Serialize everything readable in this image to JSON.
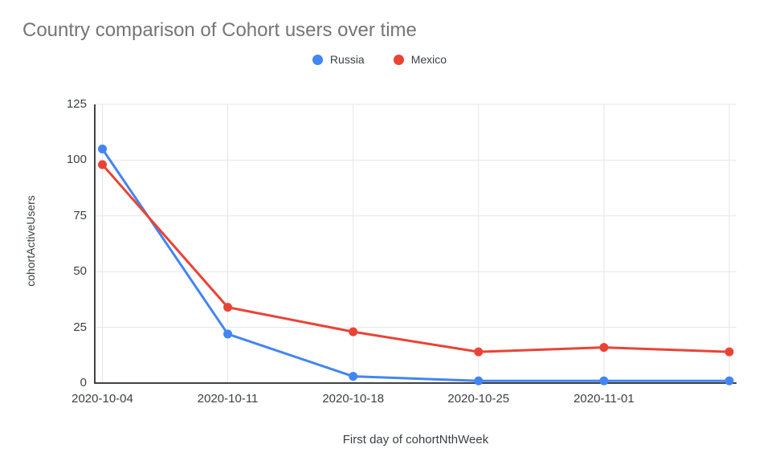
{
  "chart": {
    "title": "Country comparison of Cohort users over time"
  },
  "chart_data": {
    "type": "line",
    "title": "Country comparison of Cohort users over time",
    "x": [
      "2020-10-04",
      "2020-10-11",
      "2020-10-18",
      "2020-10-25",
      "2020-11-01",
      ""
    ],
    "x_tick_labels": [
      "2020-10-04",
      "2020-10-11",
      "2020-10-18",
      "2020-10-25",
      "2020-11-01"
    ],
    "series": [
      {
        "name": "Russia",
        "color": "#4285F4",
        "values": [
          105,
          22,
          3,
          1,
          1,
          1
        ]
      },
      {
        "name": "Mexico",
        "color": "#EA4335",
        "values": [
          98,
          34,
          23,
          14,
          16,
          14
        ]
      }
    ],
    "xlabel": "First day of cohortNthWeek",
    "ylabel": "cohortActiveUsers",
    "y_ticks": [
      0,
      25,
      50,
      75,
      100,
      125
    ],
    "ylim": [
      0,
      125
    ],
    "grid": true,
    "legend_position": "top"
  },
  "colors": {
    "series_russia": "#4285F4",
    "series_mexico": "#EA4335",
    "title_text": "#757575",
    "axis_text": "#3c4043",
    "gridline": "#e6e6e6",
    "axis_line": "#424242",
    "background": "#ffffff"
  }
}
